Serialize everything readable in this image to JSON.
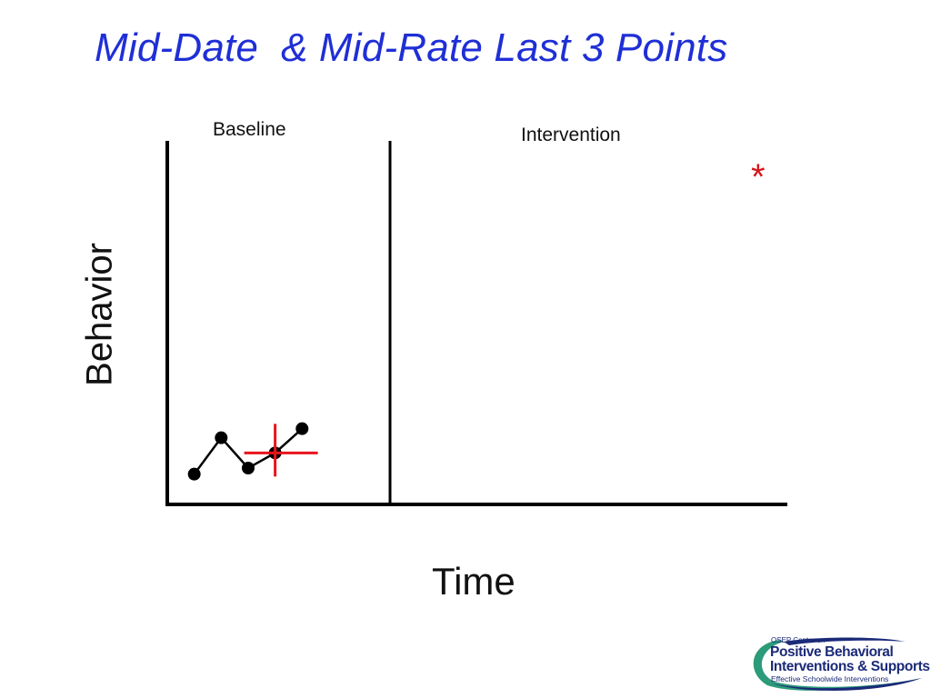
{
  "slide": {
    "title": "Mid-Date  & Mid-Rate Last 3 Points",
    "star": "*"
  },
  "chart_data": {
    "type": "line",
    "title": "",
    "xlabel": "Time",
    "ylabel": "Behavior",
    "phases": [
      "Baseline",
      "Intervention"
    ],
    "series": [
      {
        "x": [
          1,
          2,
          3,
          4,
          5
        ],
        "values": [
          1.0,
          2.2,
          1.2,
          1.7,
          2.5
        ]
      }
    ],
    "mid_marker": {
      "x": 4,
      "y": 1.7
    },
    "xlim": [
      0,
      23
    ],
    "ylim": [
      0,
      12
    ],
    "grid": false,
    "colors": {
      "line": "#000000",
      "marker": "#000000",
      "mid": "#e8141c",
      "title": "#1f2fd6",
      "star": "#d4161c"
    }
  },
  "logo": {
    "small": "OSEP Center on",
    "line1": "Positive Behavioral",
    "line2": "Interventions & Supports",
    "tag": "Effective Schoolwide Interventions"
  }
}
